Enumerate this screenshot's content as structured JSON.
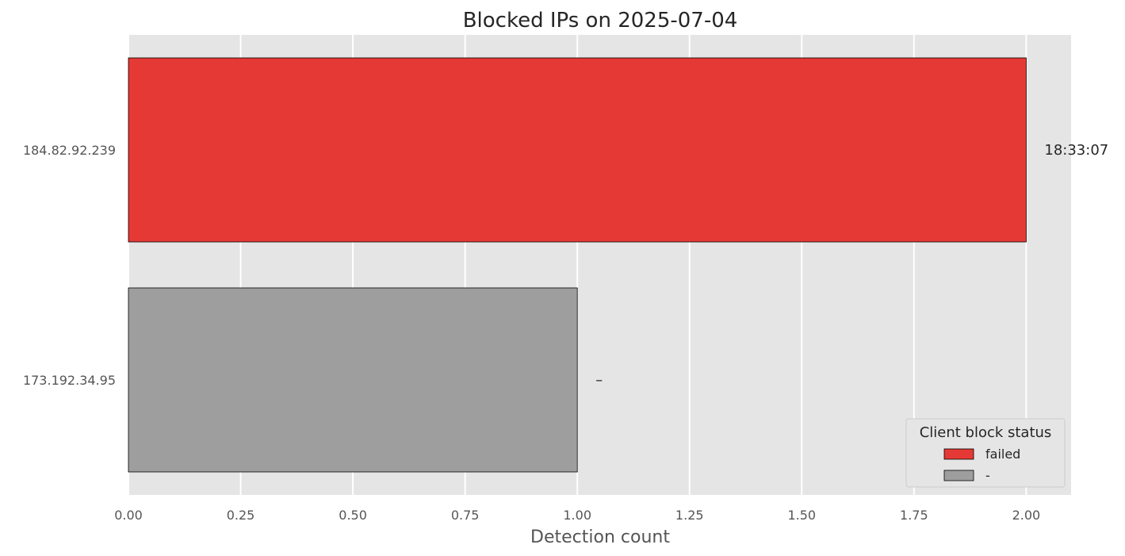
{
  "chart_data": {
    "type": "bar",
    "orientation": "horizontal",
    "title": "Blocked IPs on 2025-07-04",
    "xlabel": "Detection count",
    "ylabel": "",
    "xlim": [
      0,
      2.1
    ],
    "xticks": [
      "0.00",
      "0.25",
      "0.50",
      "0.75",
      "1.00",
      "1.25",
      "1.50",
      "1.75",
      "2.00"
    ],
    "xtick_values": [
      0,
      0.25,
      0.5,
      0.75,
      1.0,
      1.25,
      1.5,
      1.75,
      2.0
    ],
    "grid": true,
    "categories": [
      "184.82.92.239",
      "173.192.34.95"
    ],
    "values": [
      2,
      1
    ],
    "bar_labels": [
      "18:33:07",
      "–"
    ],
    "bar_status": [
      "failed",
      "-"
    ],
    "colors": {
      "failed": "#e53935",
      "-": "#9e9e9e",
      "plot_bg": "#e5e5e5",
      "grid": "#ffffff"
    },
    "legend": {
      "title": "Client block status",
      "placement": "lower right",
      "entries": [
        {
          "label": "failed",
          "color": "#e53935"
        },
        {
          "label": "-",
          "color": "#9e9e9e"
        }
      ]
    }
  }
}
